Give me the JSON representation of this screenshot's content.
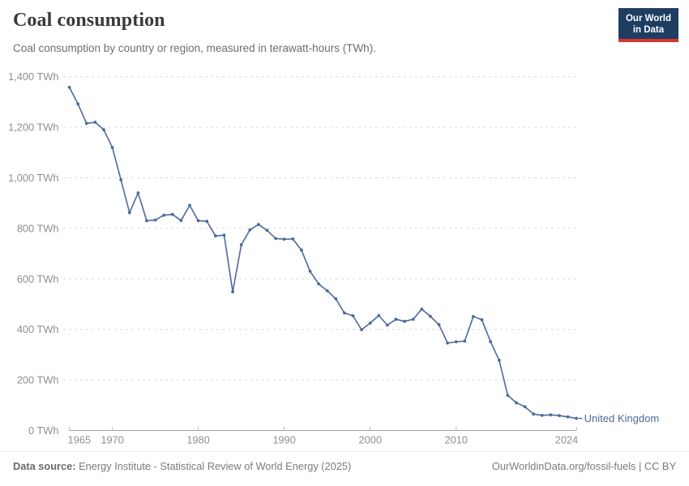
{
  "header": {
    "title": "Coal consumption",
    "subtitle": "Coal consumption by country or region, measured in terawatt-hours (TWh).",
    "logo": {
      "line1": "Our World",
      "line2": "in Data"
    }
  },
  "chart_data": {
    "type": "line",
    "title": "Coal consumption",
    "ylabel": "",
    "xlabel": "",
    "unit": "TWh",
    "grid": "horizontal-dashed",
    "legend_position": "end-of-line-label",
    "ylim": [
      0,
      1400
    ],
    "yticks": [
      0,
      200,
      400,
      600,
      800,
      1000,
      1200,
      1400
    ],
    "ytick_suffix": " TWh",
    "xticks": [
      1965,
      1970,
      1980,
      1990,
      2000,
      2010,
      2024
    ],
    "x": [
      1965,
      1966,
      1967,
      1968,
      1969,
      1970,
      1971,
      1972,
      1973,
      1974,
      1975,
      1976,
      1977,
      1978,
      1979,
      1980,
      1981,
      1982,
      1983,
      1984,
      1985,
      1986,
      1987,
      1988,
      1989,
      1990,
      1991,
      1992,
      1993,
      1994,
      1995,
      1996,
      1997,
      1998,
      1999,
      2000,
      2001,
      2002,
      2003,
      2004,
      2005,
      2006,
      2007,
      2008,
      2009,
      2010,
      2011,
      2012,
      2013,
      2014,
      2015,
      2016,
      2017,
      2018,
      2019,
      2020,
      2021,
      2022,
      2023,
      2024
    ],
    "series": [
      {
        "name": "United Kingdom",
        "color": "#4c6a9c",
        "values": [
          1358,
          1292,
          1215,
          1220,
          1190,
          1120,
          992,
          862,
          940,
          830,
          833,
          852,
          855,
          831,
          891,
          830,
          828,
          770,
          773,
          549,
          735,
          794,
          815,
          792,
          760,
          757,
          758,
          714,
          630,
          580,
          553,
          521,
          465,
          454,
          399,
          425,
          455,
          417,
          440,
          432,
          440,
          480,
          452,
          419,
          346,
          351,
          354,
          451,
          438,
          352,
          278,
          139,
          110,
          94,
          65,
          60,
          62,
          59,
          54,
          48
        ]
      }
    ]
  },
  "footer": {
    "source_label": "Data source:",
    "source_text": "Energy Institute - Statistical Review of World Energy (2025)",
    "link_text": "OurWorldinData.org/fossil-fuels | CC BY"
  }
}
